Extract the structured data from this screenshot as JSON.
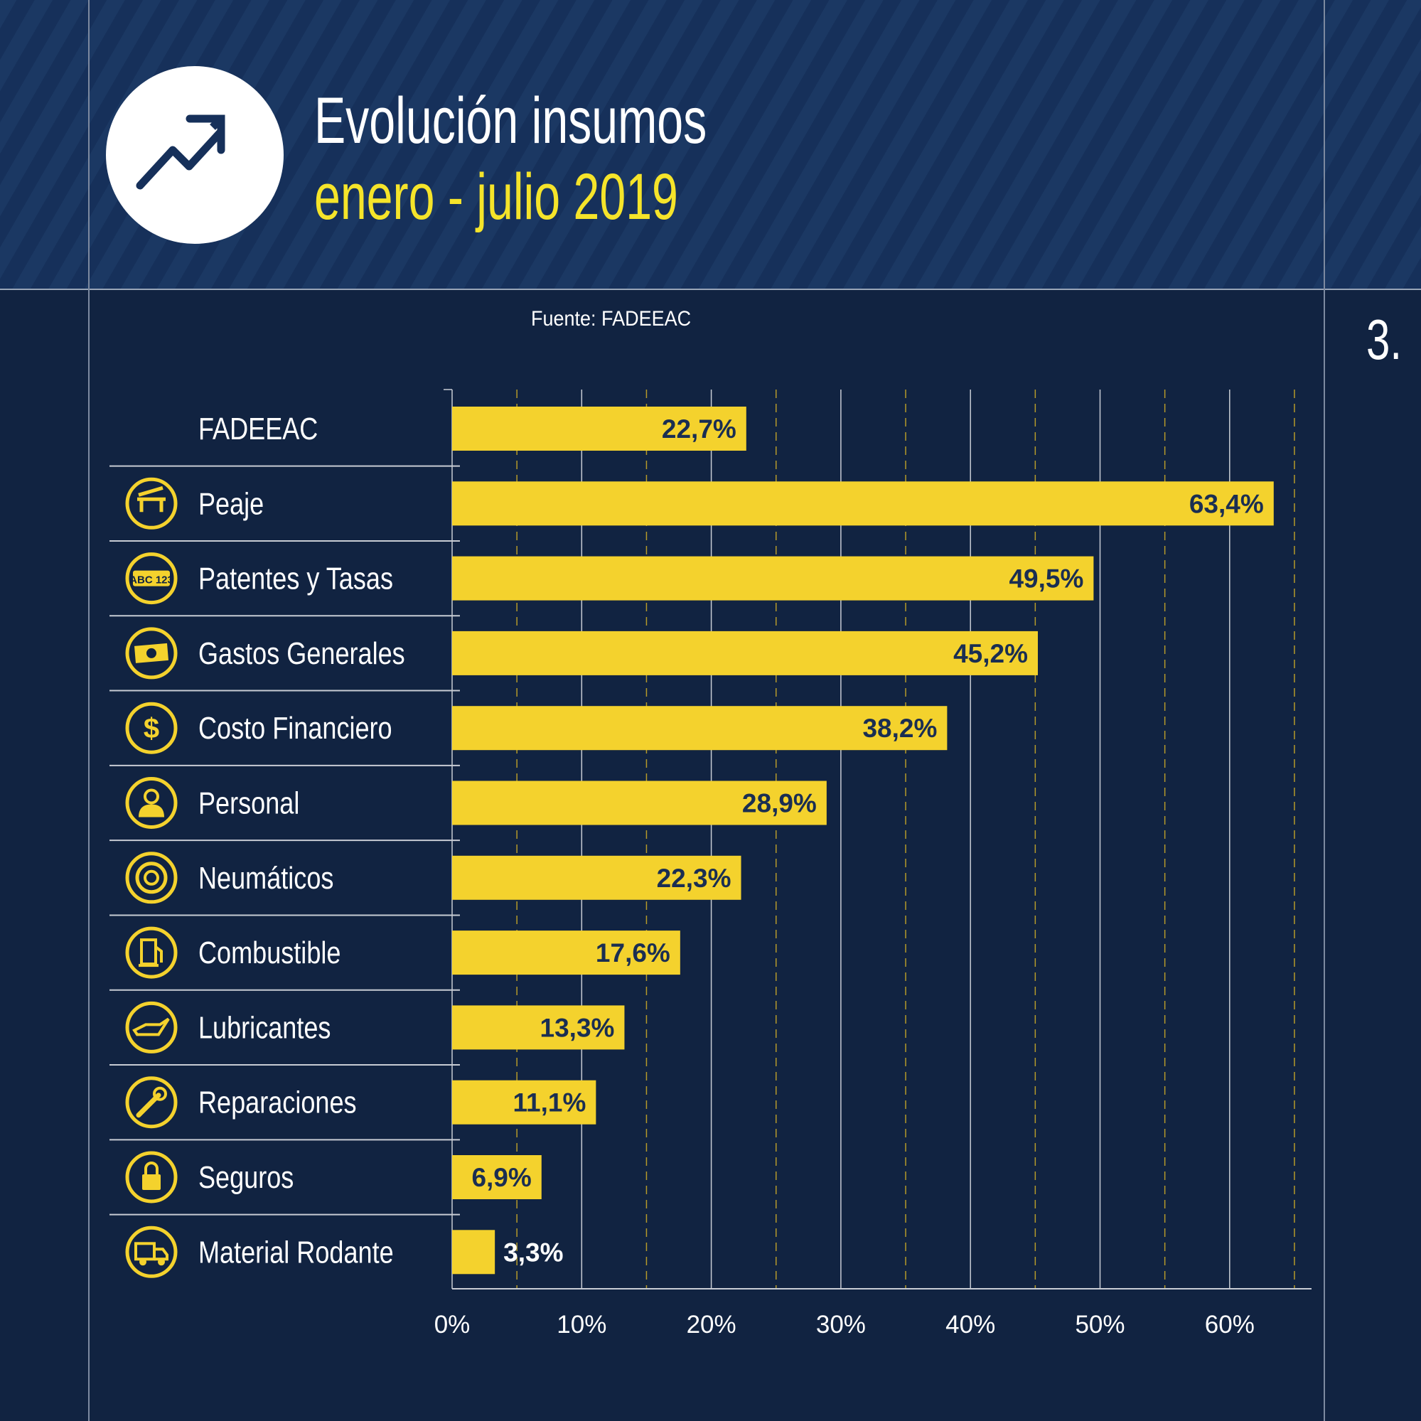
{
  "header": {
    "title": "Evolución insumos",
    "subtitle": "enero - julio 2019",
    "icon": "trending-up-icon"
  },
  "source": "Fuente: FADEEAC",
  "page_number": "3.",
  "colors": {
    "background": "#112341",
    "bar": "#f4d22d",
    "title_accent": "#f5e42a",
    "value_text": "#1a2e52"
  },
  "chart_data": {
    "type": "bar",
    "orientation": "horizontal",
    "categories": [
      "FADEEAC",
      "Peaje",
      "Patentes y Tasas",
      "Gastos Generales",
      "Costo Financiero",
      "Personal",
      "Neumáticos",
      "Combustible",
      "Lubricantes",
      "Reparaciones",
      "Seguros",
      "Material Rodante"
    ],
    "icons": [
      "",
      "toll-barrier-icon",
      "license-plate-icon",
      "banknote-icon",
      "dollar-icon",
      "person-icon",
      "tire-icon",
      "fuel-pump-icon",
      "oil-can-icon",
      "wrench-icon",
      "lock-icon",
      "truck-icon"
    ],
    "values": [
      22.7,
      63.4,
      49.5,
      45.2,
      38.2,
      28.9,
      22.3,
      17.6,
      13.3,
      11.1,
      6.9,
      3.3
    ],
    "value_labels": [
      "22,7%",
      "63,4%",
      "49,5%",
      "45,2%",
      "38,2%",
      "28,9%",
      "22,3%",
      "17,6%",
      "13,3%",
      "11,1%",
      "6,9%",
      "3,3%"
    ],
    "xlim": [
      0,
      65
    ],
    "xticks": [
      "0%",
      "10%",
      "20%",
      "30%",
      "40%",
      "50%",
      "60%"
    ],
    "grid": true
  }
}
